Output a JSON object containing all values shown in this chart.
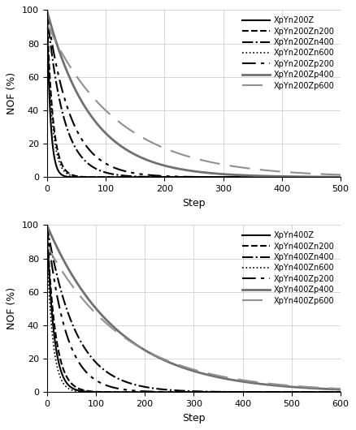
{
  "top": {
    "ylabel": "NOF (%)",
    "xlabel": "Step",
    "xlim": [
      0,
      500
    ],
    "ylim": [
      0,
      100
    ],
    "xticks": [
      0,
      100,
      200,
      300,
      400,
      500
    ],
    "yticks": [
      0,
      20,
      40,
      60,
      80,
      100
    ],
    "series": [
      {
        "label": "XpYn200Z",
        "decay": 6.0,
        "start": 100,
        "color": "#000000",
        "lw": 1.5,
        "linestyle": "solid"
      },
      {
        "label": "XpYn200Zn200",
        "decay": 10.0,
        "start": 100,
        "color": "#000000",
        "lw": 1.5,
        "linestyle": "dashed"
      },
      {
        "label": "XpYn200Zn400",
        "decay": 28.0,
        "start": 100,
        "color": "#000000",
        "lw": 1.5,
        "linestyle": "dashdot"
      },
      {
        "label": "XpYn200Zn600",
        "decay": 9.0,
        "start": 95,
        "color": "#000000",
        "lw": 1.2,
        "linestyle": "dotted"
      },
      {
        "label": "XpYn200Zp200",
        "decay": 40.0,
        "start": 100,
        "color": "#000000",
        "lw": 1.5,
        "linestyle": "dashdotdot"
      },
      {
        "label": "XpYn200Zp400",
        "decay": 75.0,
        "start": 100,
        "color": "#707070",
        "lw": 2.0,
        "linestyle": "solid"
      },
      {
        "label": "XpYn200Zp600",
        "decay": 120.0,
        "start": 92,
        "color": "#909090",
        "lw": 1.5,
        "linestyle": "longdash"
      }
    ]
  },
  "bottom": {
    "ylabel": "NOF (%)",
    "xlabel": "Step",
    "xlim": [
      0,
      600
    ],
    "ylim": [
      0,
      100
    ],
    "xticks": [
      0,
      100,
      200,
      300,
      400,
      500,
      600
    ],
    "yticks": [
      0,
      20,
      40,
      60,
      80,
      100
    ],
    "series": [
      {
        "label": "XpYn400Z",
        "decay": 14.0,
        "start": 100,
        "color": "#000000",
        "lw": 1.5,
        "linestyle": "solid"
      },
      {
        "label": "XpYn400Zn200",
        "decay": 17.0,
        "start": 100,
        "color": "#000000",
        "lw": 1.5,
        "linestyle": "dashed"
      },
      {
        "label": "XpYn400Zn400",
        "decay": 58.0,
        "start": 100,
        "color": "#000000",
        "lw": 1.5,
        "linestyle": "dashdot"
      },
      {
        "label": "XpYn400Zn600",
        "decay": 12.0,
        "start": 88,
        "color": "#000000",
        "lw": 1.2,
        "linestyle": "dotted"
      },
      {
        "label": "XpYn400Zp200",
        "decay": 38.0,
        "start": 100,
        "color": "#000000",
        "lw": 1.5,
        "linestyle": "dashdotdot"
      },
      {
        "label": "XpYn400Zp400",
        "decay": 145.0,
        "start": 100,
        "color": "#707070",
        "lw": 2.0,
        "linestyle": "solid"
      },
      {
        "label": "XpYn400Zp600",
        "decay": 160.0,
        "start": 88,
        "color": "#909090",
        "lw": 1.5,
        "linestyle": "longdash"
      }
    ]
  },
  "background_color": "#ffffff",
  "grid_color": "#c8c8c8",
  "legend_fontsize": 7.0,
  "axis_fontsize": 8,
  "label_fontsize": 9
}
